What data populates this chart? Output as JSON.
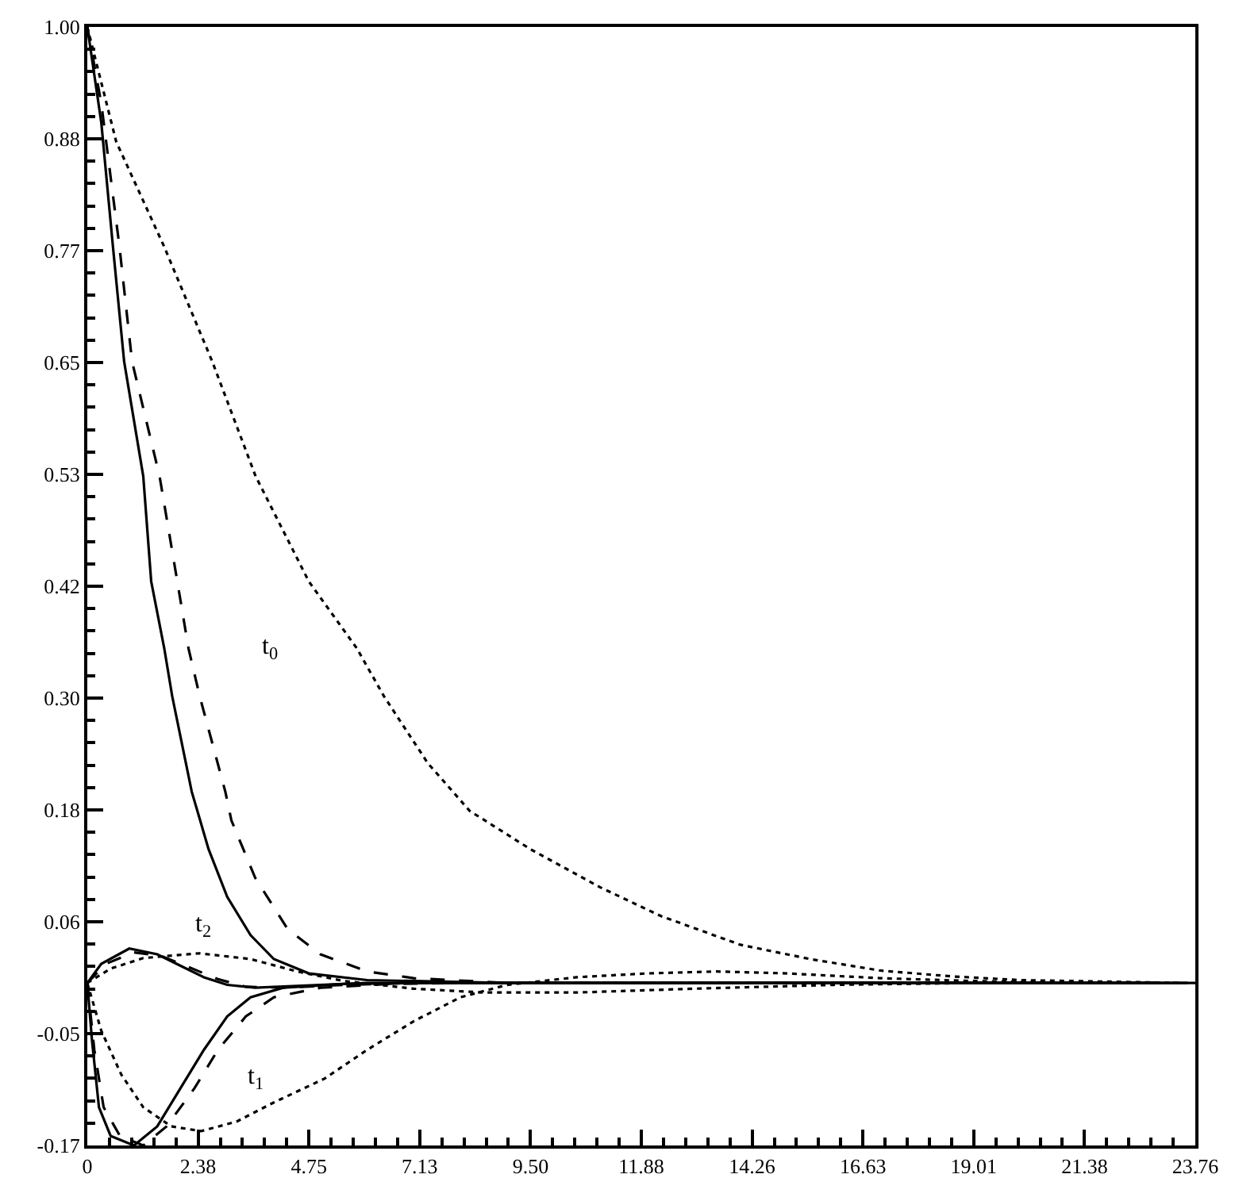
{
  "chart_data": {
    "type": "line",
    "marker": "none",
    "xlim": [
      0,
      23.76
    ],
    "ylim": [
      -0.17,
      1.0
    ],
    "xticks": [
      0,
      {
        "value": 2.376,
        "label": "2.38"
      },
      {
        "value": 4.752,
        "label": "4.75"
      },
      {
        "value": 7.128,
        "label": "7.13"
      },
      {
        "value": 9.504,
        "label": "9.50"
      },
      {
        "value": 11.88,
        "label": "11.88"
      },
      {
        "value": 14.256,
        "label": "14.26"
      },
      {
        "value": 16.632,
        "label": "16.63"
      },
      {
        "value": 19.008,
        "label": "19.01"
      },
      {
        "value": 21.384,
        "label": "21.38"
      },
      {
        "value": 23.76,
        "label": "23.76"
      }
    ],
    "yticks": [
      {
        "value": -0.17,
        "label": "-0.17"
      },
      {
        "value": -0.053,
        "label": "-0.05"
      },
      {
        "value": 0.064,
        "label": "0.06"
      },
      {
        "value": 0.181,
        "label": "0.18"
      },
      {
        "value": 0.298,
        "label": "0.30"
      },
      {
        "value": 0.415,
        "label": "0.42"
      },
      {
        "value": 0.532,
        "label": "0.53"
      },
      {
        "value": 0.649,
        "label": "0.65"
      },
      {
        "value": 0.766,
        "label": "0.77"
      },
      {
        "value": 0.883,
        "label": "0.88"
      },
      {
        "value": 1.0,
        "label": "1.00"
      }
    ],
    "series": [
      {
        "color": "#000000",
        "line_style": "solid",
        "x": [
          0,
          0.3,
          0.55,
          0.79,
          1.2,
          1.37,
          1.65,
          1.82,
          2.24,
          2.6,
          3.0,
          3.5,
          4.0,
          4.75,
          6,
          9,
          23.76
        ],
        "values": [
          1,
          0.9,
          0.77,
          0.65,
          0.53,
          0.42,
          0.35,
          0.3,
          0.2,
          0.14,
          0.09,
          0.05,
          0.025,
          0.01,
          0.003,
          0,
          0
        ]
      },
      {
        "color": "#000000",
        "line_style": "dashed",
        "x": [
          0,
          0.3,
          0.69,
          0.96,
          1.55,
          1.93,
          2.17,
          2.41,
          2.96,
          3.09,
          3.6,
          4.3,
          5.0,
          6.0,
          7.0,
          9,
          23.6
        ],
        "values": [
          1,
          0.92,
          0.77,
          0.65,
          0.53,
          0.42,
          0.35,
          0.3,
          0.2,
          0.17,
          0.11,
          0.056,
          0.03,
          0.012,
          0.005,
          0,
          0
        ]
      },
      {
        "color": "#000000",
        "line_style": "dotted",
        "x": [
          0,
          0.62,
          1.65,
          2.68,
          3.61,
          4.75,
          5.78,
          6.36,
          7.3,
          8.2,
          9.5,
          11.0,
          12.3,
          14.0,
          15.5,
          17.0,
          18.5,
          20,
          23.45
        ],
        "values": [
          1,
          0.88,
          0.77,
          0.65,
          0.53,
          0.42,
          0.35,
          0.3,
          0.23,
          0.18,
          0.14,
          0.1,
          0.07,
          0.04,
          0.025,
          0.013,
          0.007,
          0.003,
          0
        ]
      },
      {
        "color": "#000000",
        "line_style": "solid",
        "x": [
          0,
          0.1,
          0.25,
          0.5,
          1.0,
          1.5,
          2.0,
          2.5,
          3.0,
          3.5,
          4.2,
          5.5,
          7,
          23.3
        ],
        "values": [
          0,
          -0.06,
          -0.13,
          -0.16,
          -0.17,
          -0.15,
          -0.11,
          -0.07,
          -0.035,
          -0.015,
          -0.005,
          -0.001,
          0,
          0
        ]
      },
      {
        "color": "#000000",
        "line_style": "dashed",
        "x": [
          0,
          0.15,
          0.35,
          0.7,
          1.2,
          1.7,
          2.3,
          2.8,
          3.4,
          4.0,
          5,
          6.5,
          8,
          23.15
        ],
        "values": [
          0,
          -0.07,
          -0.13,
          -0.16,
          -0.17,
          -0.15,
          -0.11,
          -0.07,
          -0.035,
          -0.015,
          -0.005,
          -0.001,
          0,
          0
        ]
      },
      {
        "color": "#000000",
        "line_style": "dotted",
        "x": [
          0,
          0.3,
          0.73,
          1.2,
          1.8,
          2.44,
          3.2,
          4.0,
          5.09,
          6.0,
          7.0,
          8.0,
          9.0,
          10.5,
          12,
          13.5,
          15,
          17,
          19,
          21,
          23.0
        ],
        "values": [
          0,
          -0.05,
          -0.096,
          -0.13,
          -0.15,
          -0.155,
          -0.145,
          -0.125,
          -0.1,
          -0.07,
          -0.04,
          -0.015,
          -0.002,
          0.006,
          0.01,
          0.012,
          0.01,
          0.005,
          0.002,
          0,
          0
        ]
      },
      {
        "color": "#000000",
        "line_style": "solid",
        "x": [
          0,
          0.3,
          0.9,
          1.5,
          2.0,
          2.5,
          3.0,
          3.6,
          4.5,
          6,
          22.85
        ],
        "values": [
          0,
          0.02,
          0.036,
          0.03,
          0.018,
          0.006,
          -0.002,
          -0.005,
          -0.003,
          0,
          0
        ]
      },
      {
        "color": "#000000",
        "line_style": "dashed",
        "x": [
          0,
          0.4,
          1.0,
          1.6,
          2.2,
          2.8,
          3.4,
          4.2,
          5.5,
          7,
          22.7
        ],
        "values": [
          0,
          0.02,
          0.032,
          0.028,
          0.016,
          0.004,
          -0.004,
          -0.005,
          -0.002,
          0,
          0
        ]
      },
      {
        "color": "#000000",
        "line_style": "dotted",
        "x": [
          0,
          0.5,
          1.2,
          2.4,
          3.5,
          4.5,
          5.5,
          7,
          8.5,
          10.5,
          13,
          16,
          19,
          22.55
        ],
        "values": [
          0,
          0.015,
          0.026,
          0.031,
          0.025,
          0.012,
          0.002,
          -0.006,
          -0.01,
          -0.01,
          -0.006,
          -0.002,
          0,
          0
        ]
      }
    ],
    "annotations": [
      {
        "text": "t$_{0}$",
        "x": 3.9,
        "y": 0.35
      },
      {
        "text": "t$_{1}$",
        "x": 3.6,
        "y": -0.1
      },
      {
        "text": "t$_{2}$",
        "x": 2.5,
        "y": 0.06
      }
    ]
  }
}
